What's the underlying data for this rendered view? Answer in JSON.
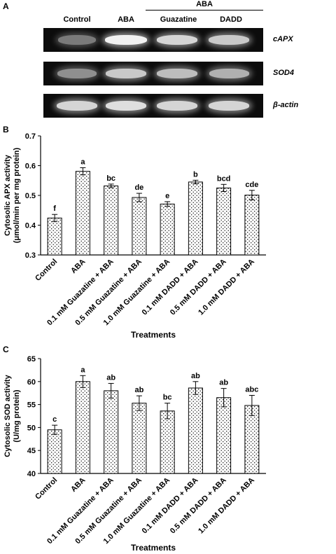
{
  "panels": {
    "a": "A",
    "b": "B",
    "c": "C"
  },
  "gel": {
    "group_label": "ABA",
    "lanes": [
      "Control",
      "ABA",
      "Guazatine",
      "DADD"
    ],
    "genes": [
      {
        "name": "cAPX",
        "intensity": [
          0.45,
          0.95,
          0.85,
          0.8
        ]
      },
      {
        "name": "SOD4",
        "intensity": [
          0.55,
          0.8,
          0.75,
          0.7
        ]
      },
      {
        "name": "β-actin",
        "intensity": [
          0.85,
          0.88,
          0.85,
          0.85
        ]
      }
    ]
  },
  "chart_data": [
    {
      "type": "bar",
      "ylabel_lines": [
        "Cytosolic APX activity",
        "(μmol/min per mg protein)"
      ],
      "xlabel": "Treatments",
      "categories": [
        "Control",
        "ABA",
        "0.1 mM Guazatine + ABA",
        "0.5 mM Guazatine + ABA",
        "1.0 mM Guazatine + ABA",
        "0.1 mM DADD + ABA",
        "0.5 mM DADD + ABA",
        "1.0 mM DADD + ABA"
      ],
      "values": [
        0.424,
        0.581,
        0.532,
        0.493,
        0.471,
        0.545,
        0.525,
        0.501
      ],
      "errors": [
        0.012,
        0.012,
        0.006,
        0.014,
        0.008,
        0.006,
        0.012,
        0.016
      ],
      "letters": [
        "f",
        "a",
        "bc",
        "de",
        "e",
        "b",
        "bcd",
        "cde"
      ],
      "ylim": [
        0.3,
        0.7
      ],
      "yticks": [
        "0.3",
        "0.4",
        "0.5",
        "0.6",
        "0.7"
      ]
    },
    {
      "type": "bar",
      "ylabel_lines": [
        "Cytosolic SOD activity",
        "(U/mg protein)"
      ],
      "xlabel": "Treatments",
      "categories": [
        "Control",
        "ABA",
        "0.1 mM Guazatine + ABA",
        "0.5 mM Guazatine + ABA",
        "1.0 mM Guazatine + ABA",
        "0.1 mM DADD + ABA",
        "0.5 mM DADD + ABA",
        "1.0 mM DADD + ABA"
      ],
      "values": [
        49.5,
        60.0,
        58.0,
        55.3,
        53.6,
        58.6,
        56.5,
        54.8
      ],
      "errors": [
        1.0,
        1.3,
        1.6,
        1.6,
        1.7,
        1.4,
        2.0,
        2.2
      ],
      "letters": [
        "c",
        "a",
        "ab",
        "ab",
        "bc",
        "ab",
        "ab",
        "abc"
      ],
      "ylim": [
        40,
        65
      ],
      "yticks": [
        "40",
        "45",
        "50",
        "55",
        "60",
        "65"
      ]
    }
  ]
}
